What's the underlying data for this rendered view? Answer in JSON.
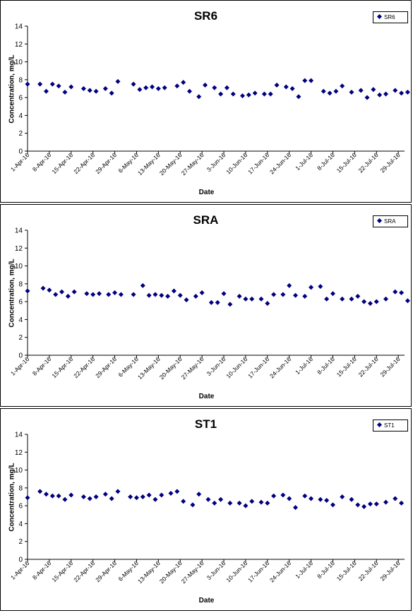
{
  "chart_data": [
    {
      "type": "scatter",
      "title": "SR6",
      "xlabel": "Date",
      "ylabel": "Concentration, mg/L",
      "ylim": [
        0,
        14
      ],
      "yticks": [
        0,
        2,
        4,
        6,
        8,
        10,
        12,
        14
      ],
      "xlim": [
        "2016-04-01",
        "2016-07-31"
      ],
      "xticks": [
        "1-Apr-16",
        "8-Apr-16",
        "15-Apr-16",
        "22-Apr-16",
        "29-Apr-16",
        "6-May-16",
        "13-May-16",
        "20-May-16",
        "27-May-16",
        "3-Jun-16",
        "10-Jun-16",
        "17-Jun-16",
        "24-Jun-16",
        "1-Jul-16",
        "8-Jul-16",
        "15-Jul-16",
        "22-Jul-16",
        "29-Jul-16"
      ],
      "legend": "top-right",
      "grid": false,
      "marker_color": "#000080",
      "series": [
        {
          "name": "SR6",
          "x": [
            "2016-04-01",
            "2016-04-05",
            "2016-04-07",
            "2016-04-09",
            "2016-04-11",
            "2016-04-13",
            "2016-04-15",
            "2016-04-19",
            "2016-04-21",
            "2016-04-23",
            "2016-04-26",
            "2016-04-28",
            "2016-04-30",
            "2016-05-05",
            "2016-05-07",
            "2016-05-09",
            "2016-05-11",
            "2016-05-13",
            "2016-05-15",
            "2016-05-19",
            "2016-05-21",
            "2016-05-23",
            "2016-05-26",
            "2016-05-28",
            "2016-05-31",
            "2016-06-02",
            "2016-06-04",
            "2016-06-06",
            "2016-06-09",
            "2016-06-11",
            "2016-06-13",
            "2016-06-16",
            "2016-06-18",
            "2016-06-20",
            "2016-06-23",
            "2016-06-25",
            "2016-06-27",
            "2016-06-29",
            "2016-07-01",
            "2016-07-05",
            "2016-07-07",
            "2016-07-09",
            "2016-07-11",
            "2016-07-14",
            "2016-07-17",
            "2016-07-19",
            "2016-07-21",
            "2016-07-23",
            "2016-07-25",
            "2016-07-28",
            "2016-07-30",
            "2016-08-01"
          ],
          "y": [
            7.5,
            7.5,
            6.7,
            7.5,
            7.3,
            6.6,
            7.2,
            7.0,
            6.8,
            6.7,
            7.0,
            6.5,
            7.8,
            7.5,
            6.9,
            7.1,
            7.2,
            7.0,
            7.1,
            7.3,
            7.7,
            6.7,
            6.1,
            7.4,
            7.1,
            6.4,
            7.1,
            6.4,
            6.2,
            6.3,
            6.5,
            6.4,
            6.4,
            7.4,
            7.2,
            7.0,
            6.1,
            7.9,
            7.9,
            6.7,
            6.5,
            6.7,
            7.3,
            6.6,
            6.8,
            6.0,
            6.9,
            6.3,
            6.4,
            6.8,
            6.5,
            6.6
          ]
        }
      ]
    },
    {
      "type": "scatter",
      "title": "SRA",
      "xlabel": "Date",
      "ylabel": "Concentration, mg/L",
      "ylim": [
        0,
        14
      ],
      "yticks": [
        0,
        2,
        4,
        6,
        8,
        10,
        12,
        14
      ],
      "xlim": [
        "2016-04-01",
        "2016-07-31"
      ],
      "xticks": [
        "1-Apr-16",
        "8-Apr-16",
        "15-Apr-16",
        "22-Apr-16",
        "29-Apr-16",
        "6-May-16",
        "13-May-16",
        "20-May-16",
        "27-May-16",
        "3-Jun-16",
        "10-Jun-16",
        "17-Jun-16",
        "24-Jun-16",
        "1-Jul-16",
        "8-Jul-16",
        "15-Jul-16",
        "22-Jul-16",
        "29-Jul-16"
      ],
      "legend": "top-right",
      "grid": false,
      "marker_color": "#000080",
      "series": [
        {
          "name": "SRA",
          "x": [
            "2016-04-01",
            "2016-04-06",
            "2016-04-08",
            "2016-04-10",
            "2016-04-12",
            "2016-04-14",
            "2016-04-16",
            "2016-04-20",
            "2016-04-22",
            "2016-04-24",
            "2016-04-27",
            "2016-04-29",
            "2016-05-01",
            "2016-05-05",
            "2016-05-08",
            "2016-05-10",
            "2016-05-12",
            "2016-05-14",
            "2016-05-16",
            "2016-05-18",
            "2016-05-20",
            "2016-05-22",
            "2016-05-25",
            "2016-05-27",
            "2016-05-30",
            "2016-06-01",
            "2016-06-03",
            "2016-06-05",
            "2016-06-08",
            "2016-06-10",
            "2016-06-12",
            "2016-06-15",
            "2016-06-17",
            "2016-06-19",
            "2016-06-22",
            "2016-06-24",
            "2016-06-26",
            "2016-06-29",
            "2016-07-01",
            "2016-07-04",
            "2016-07-06",
            "2016-07-08",
            "2016-07-11",
            "2016-07-14",
            "2016-07-16",
            "2016-07-18",
            "2016-07-20",
            "2016-07-22",
            "2016-07-25",
            "2016-07-28",
            "2016-07-30",
            "2016-08-01"
          ],
          "y": [
            7.2,
            7.5,
            7.3,
            6.8,
            7.1,
            6.6,
            7.1,
            6.9,
            6.8,
            6.9,
            6.8,
            7.0,
            6.8,
            6.8,
            7.8,
            6.7,
            6.8,
            6.7,
            6.6,
            7.2,
            6.7,
            6.2,
            6.6,
            7.0,
            5.9,
            5.9,
            6.9,
            5.7,
            6.6,
            6.3,
            6.3,
            6.3,
            5.8,
            6.8,
            6.8,
            7.8,
            6.7,
            6.6,
            7.6,
            7.7,
            6.3,
            6.9,
            6.3,
            6.3,
            6.6,
            6.0,
            5.8,
            6.0,
            6.3,
            7.1,
            7.0,
            6.1
          ]
        }
      ]
    },
    {
      "type": "scatter",
      "title": "ST1",
      "xlabel": "Date",
      "ylabel": "Concentration, mg/L",
      "ylim": [
        0,
        14
      ],
      "yticks": [
        0,
        2,
        4,
        6,
        8,
        10,
        12,
        14
      ],
      "xlim": [
        "2016-04-01",
        "2016-07-31"
      ],
      "xticks": [
        "1-Apr-16",
        "8-Apr-16",
        "15-Apr-16",
        "22-Apr-16",
        "29-Apr-16",
        "6-May-16",
        "13-May-16",
        "20-May-16",
        "27-May-16",
        "3-Jun-16",
        "10-Jun-16",
        "17-Jun-16",
        "24-Jun-16",
        "1-Jul-16",
        "8-Jul-16",
        "15-Jul-16",
        "22-Jul-16",
        "29-Jul-16"
      ],
      "legend": "top-right",
      "grid": false,
      "marker_color": "#000080",
      "series": [
        {
          "name": "ST1",
          "x": [
            "2016-04-01",
            "2016-04-05",
            "2016-04-07",
            "2016-04-09",
            "2016-04-11",
            "2016-04-13",
            "2016-04-15",
            "2016-04-19",
            "2016-04-21",
            "2016-04-23",
            "2016-04-26",
            "2016-04-28",
            "2016-04-30",
            "2016-05-04",
            "2016-05-06",
            "2016-05-08",
            "2016-05-10",
            "2016-05-12",
            "2016-05-14",
            "2016-05-17",
            "2016-05-19",
            "2016-05-21",
            "2016-05-24",
            "2016-05-26",
            "2016-05-29",
            "2016-05-31",
            "2016-06-02",
            "2016-06-05",
            "2016-06-08",
            "2016-06-10",
            "2016-06-12",
            "2016-06-15",
            "2016-06-17",
            "2016-06-19",
            "2016-06-22",
            "2016-06-24",
            "2016-06-26",
            "2016-06-29",
            "2016-07-01",
            "2016-07-04",
            "2016-07-06",
            "2016-07-08",
            "2016-07-11",
            "2016-07-14",
            "2016-07-16",
            "2016-07-18",
            "2016-07-20",
            "2016-07-22",
            "2016-07-25",
            "2016-07-28",
            "2016-07-30"
          ],
          "y": [
            6.9,
            7.6,
            7.3,
            7.1,
            7.1,
            6.7,
            7.2,
            7.0,
            6.8,
            7.0,
            7.3,
            6.8,
            7.6,
            7.0,
            6.9,
            7.0,
            7.2,
            6.7,
            7.2,
            7.4,
            7.6,
            6.5,
            6.1,
            7.3,
            6.7,
            6.3,
            6.7,
            6.3,
            6.3,
            6.0,
            6.5,
            6.4,
            6.3,
            7.1,
            7.2,
            6.8,
            5.8,
            7.1,
            6.8,
            6.7,
            6.6,
            6.1,
            7.0,
            6.7,
            6.1,
            5.9,
            6.2,
            6.2,
            6.4,
            6.8,
            6.3
          ]
        }
      ]
    }
  ]
}
